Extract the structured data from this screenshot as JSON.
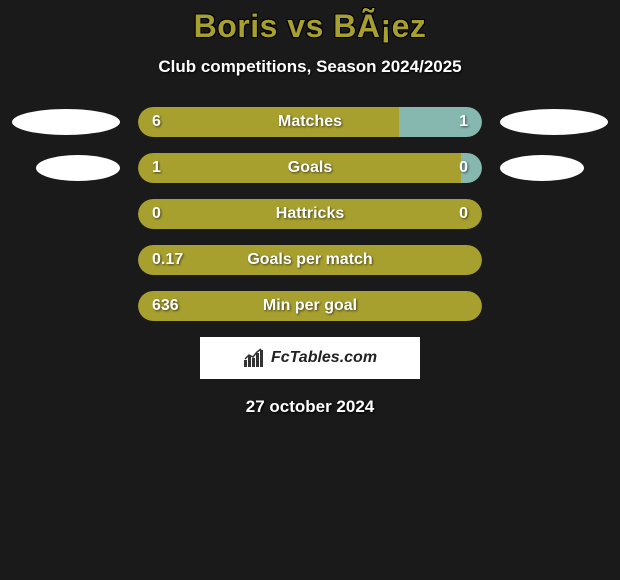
{
  "title": "Boris vs BÃ¡ez",
  "subtitle": "Club competitions, Season 2024/2025",
  "date": "27 october 2024",
  "footer_brand": "FcTables.com",
  "colors": {
    "background": "#1a1a1a",
    "title_color": "#a8a02e",
    "text_white": "#ffffff",
    "bar_primary": "#a8a02e",
    "bar_secondary": "#87b8b0",
    "badge_white": "#ffffff"
  },
  "rows": [
    {
      "label": "Matches",
      "left_value": "6",
      "right_value": "1",
      "left_pct": 76,
      "right_pct": 24,
      "left_color": "#a8a02e",
      "right_color": "#87b8b0",
      "show_right_value": true,
      "show_left_badge": true,
      "show_right_badge": true
    },
    {
      "label": "Goals",
      "left_value": "1",
      "right_value": "0",
      "left_pct": 94,
      "right_pct": 6,
      "left_color": "#a8a02e",
      "right_color": "#87b8b0",
      "show_right_value": true,
      "show_left_badge": true,
      "show_right_badge": true
    },
    {
      "label": "Hattricks",
      "left_value": "0",
      "right_value": "0",
      "left_pct": 100,
      "right_pct": 0,
      "left_color": "#a8a02e",
      "right_color": "#87b8b0",
      "show_right_value": true,
      "show_left_badge": false,
      "show_right_badge": false
    },
    {
      "label": "Goals per match",
      "left_value": "0.17",
      "right_value": "",
      "left_pct": 100,
      "right_pct": 0,
      "left_color": "#a8a02e",
      "right_color": "#87b8b0",
      "show_right_value": false,
      "show_left_badge": false,
      "show_right_badge": false
    },
    {
      "label": "Min per goal",
      "left_value": "636",
      "right_value": "",
      "left_pct": 100,
      "right_pct": 0,
      "left_color": "#a8a02e",
      "right_color": "#87b8b0",
      "show_right_value": false,
      "show_left_badge": false,
      "show_right_badge": false
    }
  ]
}
